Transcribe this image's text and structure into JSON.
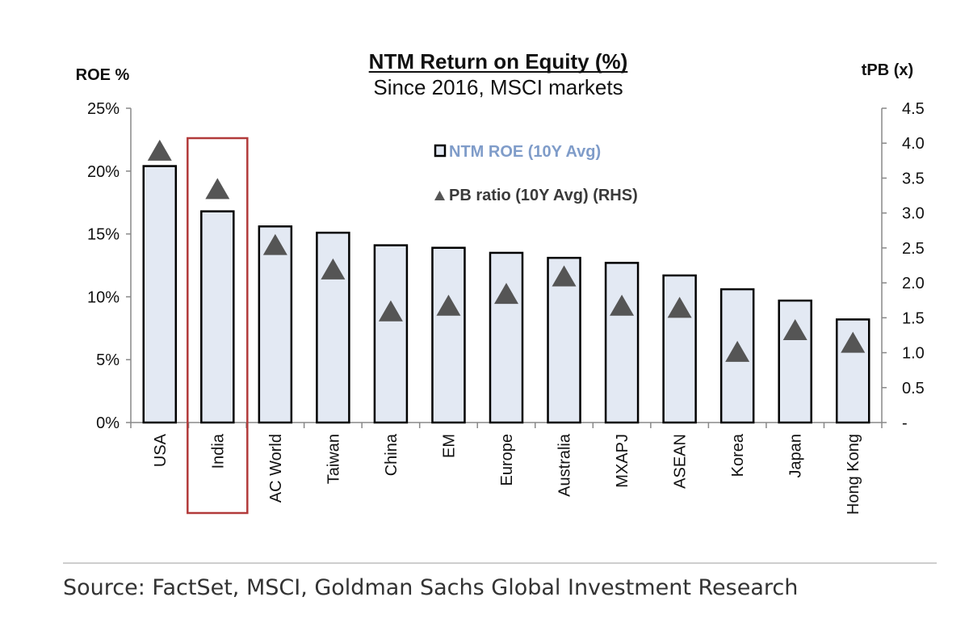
{
  "chart_data": {
    "type": "bar",
    "title": "NTM Return on Equity (%)",
    "subtitle": "Since 2016, MSCI markets",
    "ylabel_left": "ROE %",
    "ylabel_right": "tPB (x)",
    "categories": [
      "USA",
      "India",
      "AC World",
      "Taiwan",
      "China",
      "EM",
      "Europe",
      "Australia",
      "MXAPJ",
      "ASEAN",
      "Korea",
      "Japan",
      "Hong Kong"
    ],
    "series": [
      {
        "name": "NTM ROE (10Y Avg)",
        "type": "bar",
        "axis": "left",
        "values": [
          20.4,
          16.8,
          15.6,
          15.1,
          14.1,
          13.9,
          13.5,
          13.1,
          12.7,
          11.7,
          10.6,
          9.7,
          8.2
        ]
      },
      {
        "name": "PB ratio (10Y Avg) (RHS)",
        "type": "marker",
        "axis": "right",
        "values": [
          3.9,
          3.35,
          2.55,
          2.2,
          1.6,
          1.68,
          1.85,
          2.1,
          1.68,
          1.65,
          1.02,
          1.33,
          1.15
        ]
      }
    ],
    "ylim_left": [
      0,
      25
    ],
    "ylim_right": [
      0,
      4.5
    ],
    "left_ticks": [
      {
        "value": 0,
        "label": "0%"
      },
      {
        "value": 5,
        "label": "5%"
      },
      {
        "value": 10,
        "label": "10%"
      },
      {
        "value": 15,
        "label": "15%"
      },
      {
        "value": 20,
        "label": "20%"
      },
      {
        "value": 25,
        "label": "25%"
      }
    ],
    "right_ticks": [
      {
        "value": 0,
        "label": "-"
      },
      {
        "value": 0.5,
        "label": "0.5"
      },
      {
        "value": 1.0,
        "label": "1.0"
      },
      {
        "value": 1.5,
        "label": "1.5"
      },
      {
        "value": 2.0,
        "label": "2.0"
      },
      {
        "value": 2.5,
        "label": "2.5"
      },
      {
        "value": 3.0,
        "label": "3.0"
      },
      {
        "value": 3.5,
        "label": "3.5"
      },
      {
        "value": 4.0,
        "label": "4.0"
      },
      {
        "value": 4.5,
        "label": "4.5"
      }
    ],
    "highlight_category": "India",
    "legend_position": "top-center",
    "grid": false,
    "source": "Source: FactSet, MSCI, Goldman Sachs Global Investment Research"
  },
  "colors": {
    "bar_fill": "#e3e9f3",
    "bar_stroke": "#000000",
    "marker": "#555555",
    "legend_bar_text": "#7f9cc9",
    "legend_pb_text": "#3a3a3a",
    "highlight": "#b23a3a",
    "axis": "#888888",
    "text": "#111111",
    "source_rule": "#bdbdbd",
    "source_text": "#333333"
  }
}
